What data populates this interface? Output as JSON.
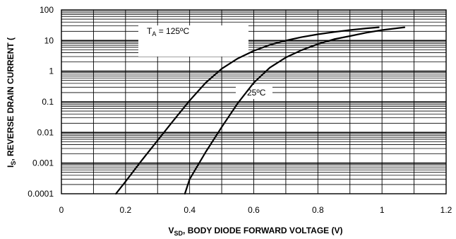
{
  "chart_data": {
    "type": "line",
    "xlabel": {
      "main": "V",
      "sub": "SD",
      "rest": ", BODY DIODE FORWARD VOLTAGE (V)"
    },
    "ylabel": {
      "main": "I",
      "sub": "S",
      "rest": ", REVERSE DRAIN CURRENT ("
    },
    "xlim": [
      0,
      1.2
    ],
    "ylim": [
      0.0001,
      100
    ],
    "yscale": "log",
    "x_ticks": [
      "0",
      "0.2",
      "0.4",
      "0.6",
      "0.8",
      "1",
      "1.2"
    ],
    "y_ticks": [
      "0.0001",
      "0.001",
      "0.01",
      "0.1",
      "1",
      "10",
      "100"
    ],
    "grid": true,
    "series": [
      {
        "name": "125ºC",
        "label_parts": {
          "t": "T",
          "sub": "A",
          "rest": " = 125ºC"
        },
        "points": [
          [
            0.17,
            0.0001
          ],
          [
            0.2,
            0.00025
          ],
          [
            0.25,
            0.0012
          ],
          [
            0.3,
            0.0055
          ],
          [
            0.35,
            0.025
          ],
          [
            0.4,
            0.11
          ],
          [
            0.45,
            0.42
          ],
          [
            0.5,
            1.2
          ],
          [
            0.55,
            2.6
          ],
          [
            0.6,
            4.6
          ],
          [
            0.65,
            7.2
          ],
          [
            0.7,
            10
          ],
          [
            0.75,
            13
          ],
          [
            0.8,
            16
          ],
          [
            0.85,
            19
          ],
          [
            0.9,
            22
          ],
          [
            0.95,
            25
          ],
          [
            0.99,
            27
          ]
        ]
      },
      {
        "name": "25ºC",
        "label_parts": {
          "t": "25ºC",
          "sub": "",
          "rest": ""
        },
        "points": [
          [
            0.385,
            0.0001
          ],
          [
            0.4,
            0.0003
          ],
          [
            0.45,
            0.0023
          ],
          [
            0.5,
            0.015
          ],
          [
            0.55,
            0.09
          ],
          [
            0.6,
            0.42
          ],
          [
            0.65,
            1.3
          ],
          [
            0.7,
            2.8
          ],
          [
            0.75,
            4.9
          ],
          [
            0.8,
            7.7
          ],
          [
            0.85,
            11
          ],
          [
            0.9,
            14
          ],
          [
            0.95,
            18
          ],
          [
            1.0,
            22
          ],
          [
            1.07,
            27
          ]
        ]
      }
    ]
  }
}
